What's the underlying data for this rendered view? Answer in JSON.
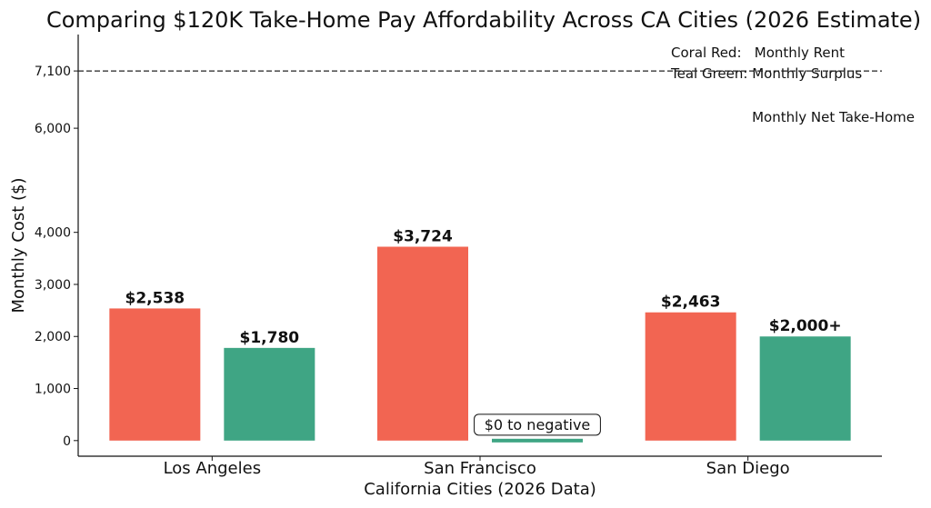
{
  "chart_data": {
    "type": "bar",
    "title": "Comparing $120K Take-Home Pay Affordability Across CA Cities (2026 Estimate)",
    "xlabel": "California Cities (2026 Data)",
    "ylabel": "Monthly Cost ($)",
    "categories": [
      "Los Angeles",
      "San Francisco",
      "San Diego"
    ],
    "series": [
      {
        "key": "rent",
        "color": "#f26552",
        "values": [
          2538,
          3724,
          2463
        ],
        "labels": [
          "$2,538",
          "$3,724",
          "$2,463"
        ]
      },
      {
        "key": "surplus",
        "color": "#3fa584",
        "values": [
          1780,
          0,
          2000
        ],
        "labels": [
          "$1,780",
          "$0 to negative",
          "$2,000+"
        ]
      }
    ],
    "ylim": [
      -300,
      7800
    ],
    "yticks": [
      0,
      1000,
      2000,
      3000,
      4000,
      6000,
      7100
    ],
    "ytick_labels": [
      "0",
      "1,000",
      "2,000",
      "3,000",
      "4,000",
      "6,000",
      "7,100"
    ],
    "reference_line": {
      "value": 7100,
      "label": "Monthly Net Take-Home",
      "style": "dashed"
    },
    "legend": {
      "placement": "top-right",
      "lines": [
        "Coral Red:   Monthly Rent",
        "Teal Green: Monthly Surplus"
      ]
    },
    "grid": false
  }
}
